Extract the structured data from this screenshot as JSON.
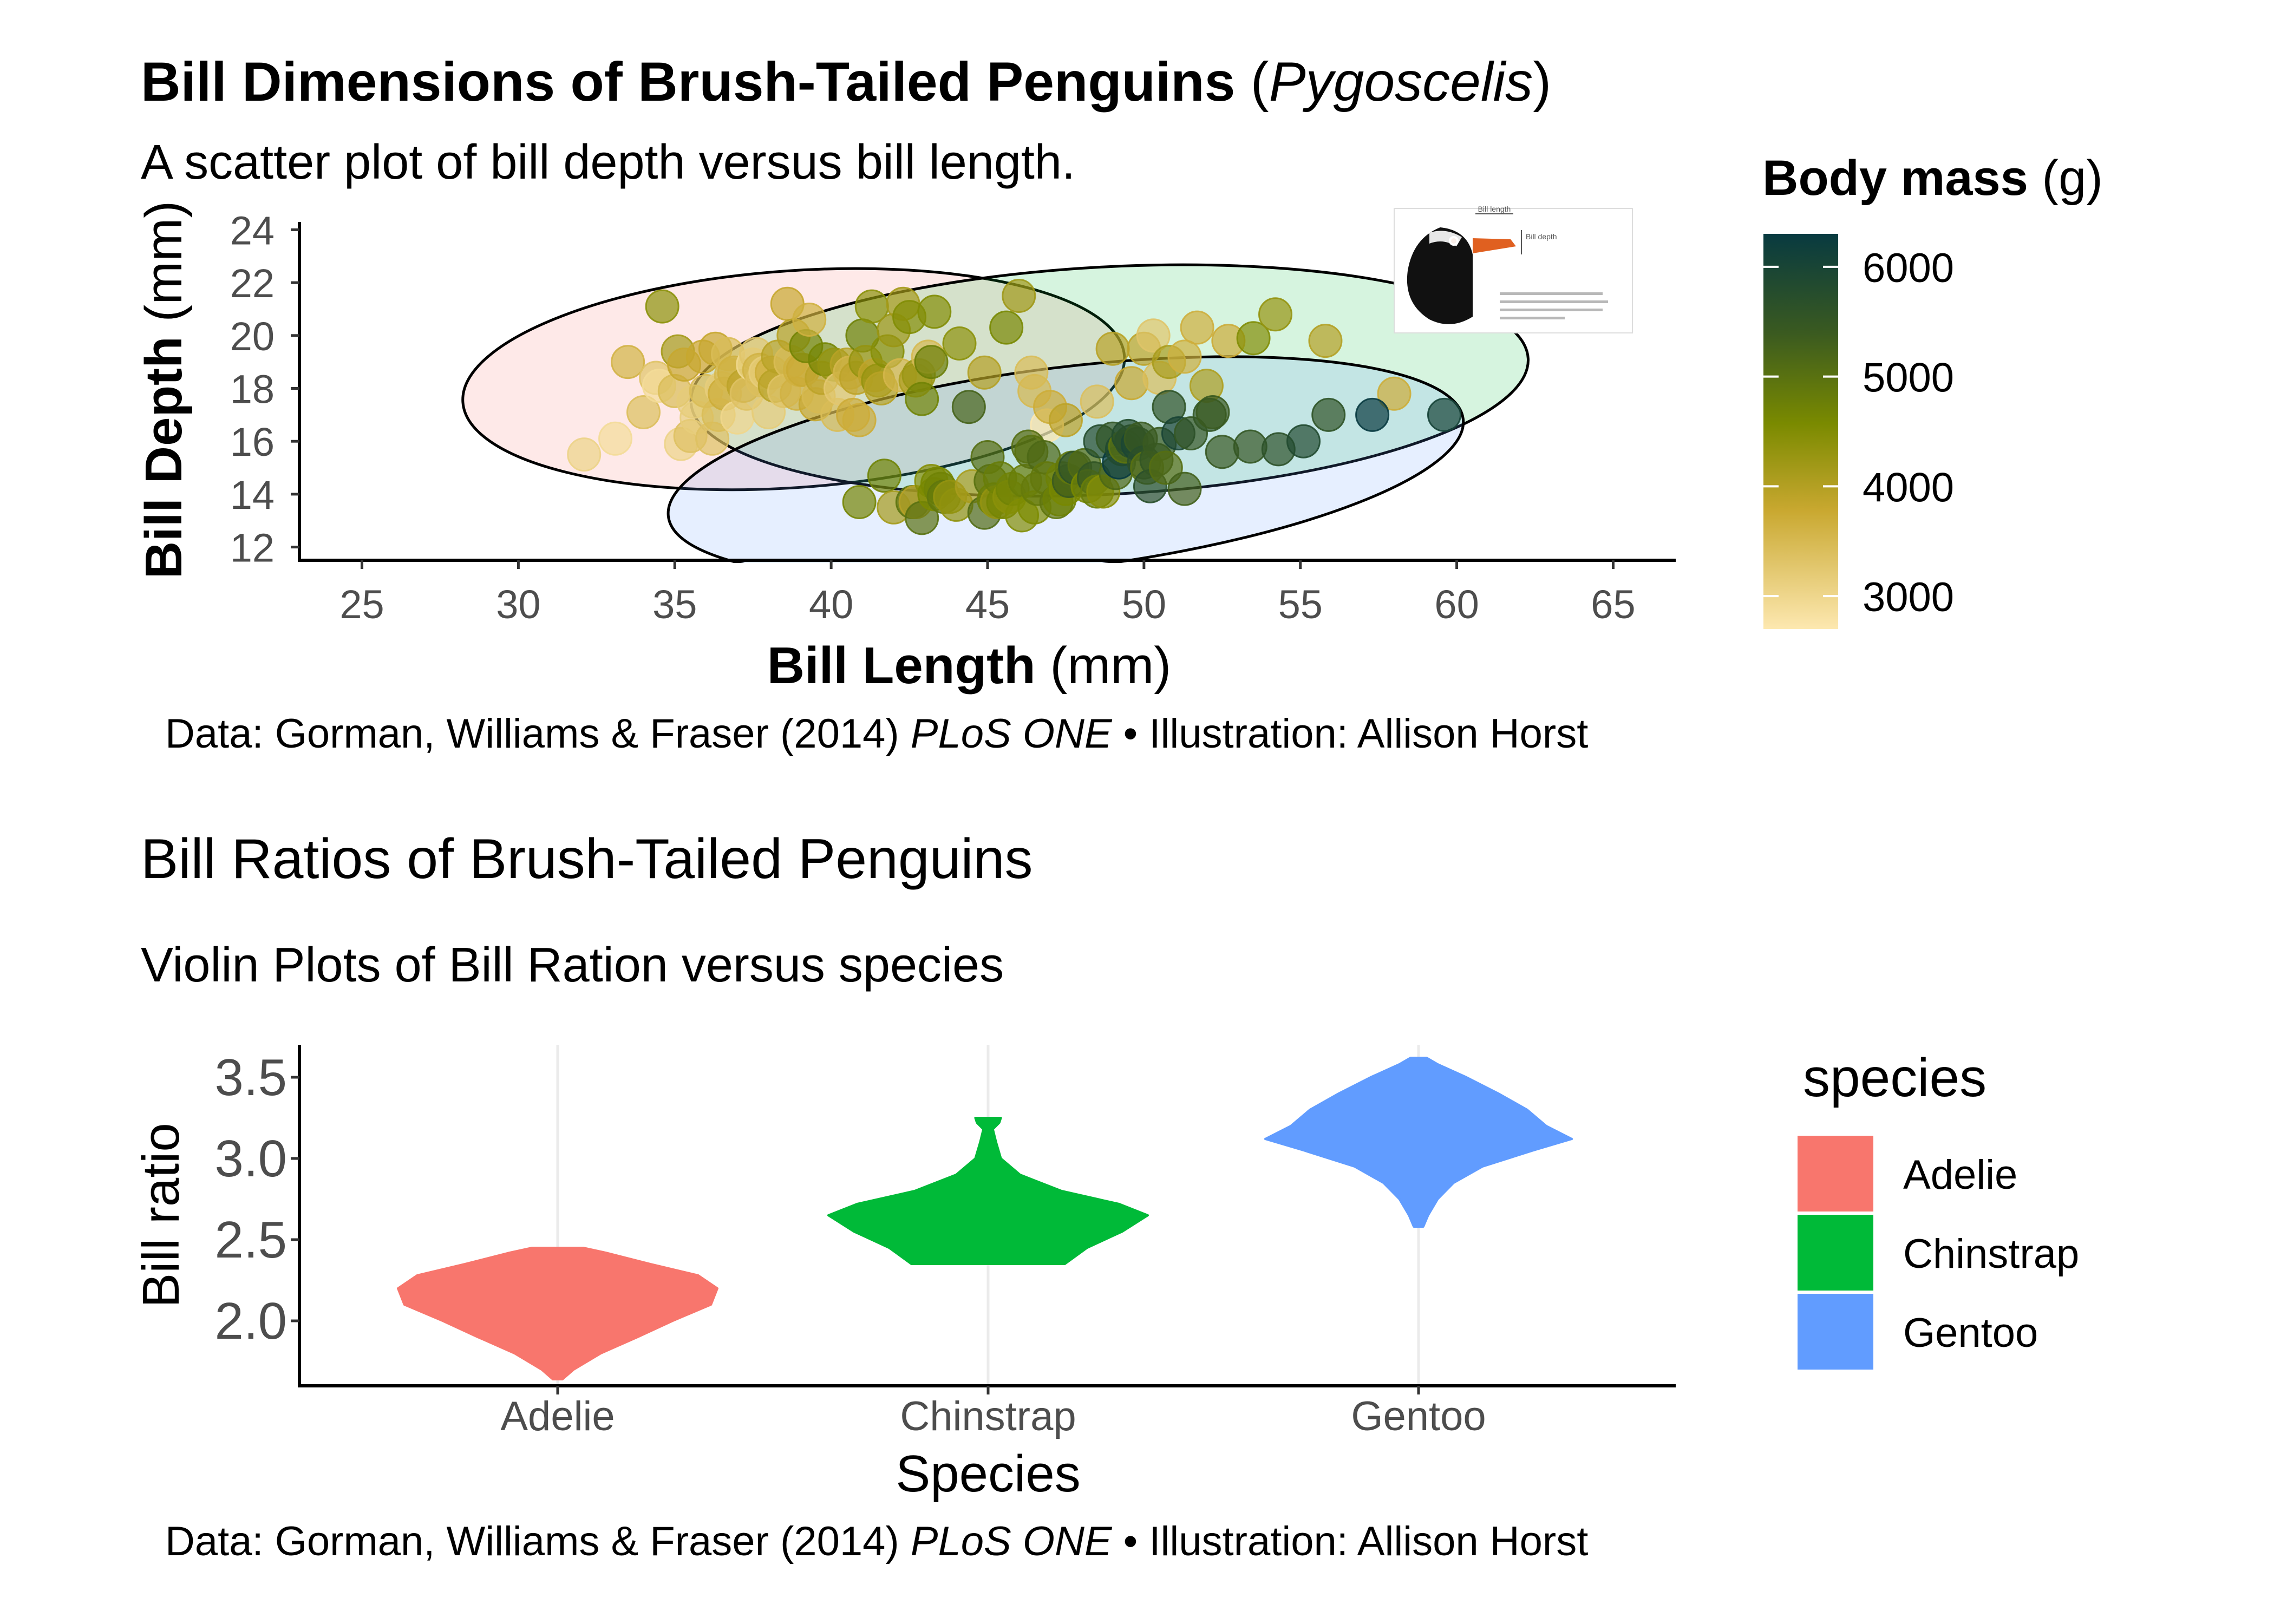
{
  "plot1": {
    "title_bold": "Bill Dimensions of Brush-Tailed Penguins",
    "title_open": " (",
    "title_italic": "Pygoscelis",
    "title_close": ")",
    "subtitle": "A scatter plot of bill depth versus bill length.",
    "caption_a": "Data: Gorman, Williams & Fraser (2014) ",
    "caption_italic": "PLoS ONE",
    "caption_b": " • Illustration: Allison Horst",
    "xlabel_bold": "Bill Length",
    "xlabel_unit": " (mm)",
    "ylabel_bold": "Bill Depth",
    "ylabel_unit": " (mm)",
    "legend_title_bold": "Body mass",
    "legend_title_unit": " (g)",
    "legend_ticks": [
      "3000",
      "4000",
      "5000",
      "6000"
    ],
    "illustration_labels": {
      "bill_length": "Bill length",
      "bill_depth": "Bill depth"
    },
    "colors": {
      "low": "#fde8b0",
      "mid1": "#c9a830",
      "mid2": "#7a8a00",
      "mid3": "#3a5a20",
      "high": "#083a40"
    }
  },
  "plot2": {
    "title": "Bill Ratios of Brush-Tailed Penguins",
    "subtitle": "Violin Plots of Bill Ration versus species",
    "caption_a": "Data: Gorman, Williams & Fraser (2014) ",
    "caption_italic": "PLoS ONE",
    "caption_b": " • Illustration: Allison Horst",
    "legend_title": "species",
    "colors": {
      "Adelie": "#F8766D",
      "Chinstrap": "#00BA38",
      "Gentoo": "#619CFF"
    }
  },
  "chart_data": [
    {
      "type": "scatter",
      "xlabel": "Bill Length (mm)",
      "ylabel": "Bill Depth (mm)",
      "xlim": [
        23,
        67
      ],
      "ylim": [
        11.5,
        24.5
      ],
      "xticks": [
        25,
        30,
        35,
        40,
        45,
        50,
        55,
        60,
        65
      ],
      "yticks": [
        12,
        14,
        16,
        18,
        20,
        22,
        24
      ],
      "color_scale": {
        "name": "Body mass (g)",
        "range": [
          2700,
          6300
        ]
      },
      "ellipses": [
        {
          "group": "Adelie",
          "fill": "#F8766D",
          "cx": 38.8,
          "cy": 18.35,
          "rx": 10.6,
          "ry": 4.1,
          "angle_deg": 4
        },
        {
          "group": "Chinstrap",
          "fill": "#00BA38",
          "cx": 48.9,
          "cy": 18.3,
          "rx": 13.4,
          "ry": 4.3,
          "angle_deg": 3
        },
        {
          "group": "Gentoo",
          "fill": "#619CFF",
          "cx": 47.5,
          "cy": 15.0,
          "rx": 12.8,
          "ry": 3.8,
          "angle_deg": 7
        }
      ],
      "points": [
        [
          32.1,
          15.5,
          3050
        ],
        [
          33.1,
          16.1,
          2900
        ],
        [
          33.5,
          19.0,
          3600
        ],
        [
          34.0,
          17.1,
          3400
        ],
        [
          34.4,
          18.4,
          3325
        ],
        [
          34.5,
          18.1,
          2900
        ],
        [
          34.6,
          21.1,
          4400
        ],
        [
          35.0,
          17.9,
          3450
        ],
        [
          35.1,
          19.4,
          4150
        ],
        [
          35.2,
          15.9,
          3050
        ],
        [
          35.3,
          18.9,
          3800
        ],
        [
          35.5,
          16.2,
          3350
        ],
        [
          35.6,
          17.5,
          3175
        ],
        [
          35.7,
          16.9,
          3150
        ],
        [
          35.9,
          19.2,
          3800
        ],
        [
          36.0,
          17.9,
          3450
        ],
        [
          36.2,
          16.1,
          3350
        ],
        [
          36.3,
          19.5,
          3800
        ],
        [
          36.4,
          17.0,
          3450
        ],
        [
          36.5,
          18.0,
          3150
        ],
        [
          36.6,
          17.8,
          3700
        ],
        [
          36.7,
          19.3,
          3450
        ],
        [
          36.8,
          18.5,
          3500
        ],
        [
          36.9,
          18.6,
          3650
        ],
        [
          37.0,
          16.9,
          3000
        ],
        [
          37.2,
          18.1,
          3900
        ],
        [
          37.3,
          17.8,
          3350
        ],
        [
          37.5,
          18.9,
          2975
        ],
        [
          37.6,
          19.3,
          3300
        ],
        [
          37.7,
          18.7,
          3600
        ],
        [
          37.8,
          18.3,
          3400
        ],
        [
          37.9,
          18.6,
          3150
        ],
        [
          38.0,
          17.1,
          3175
        ],
        [
          38.1,
          18.6,
          3700
        ],
        [
          38.2,
          18.1,
          3950
        ],
        [
          38.3,
          19.2,
          3950
        ],
        [
          38.5,
          17.9,
          3325
        ],
        [
          38.6,
          21.2,
          3800
        ],
        [
          38.7,
          19.0,
          3450
        ],
        [
          38.8,
          20.0,
          3950
        ],
        [
          38.9,
          17.8,
          3625
        ],
        [
          39.0,
          18.7,
          3650
        ],
        [
          39.1,
          18.7,
          3750
        ],
        [
          39.2,
          19.6,
          4675
        ],
        [
          39.3,
          20.6,
          3650
        ],
        [
          39.5,
          17.4,
          3800
        ],
        [
          39.6,
          17.7,
          3500
        ],
        [
          39.7,
          18.4,
          3900
        ],
        [
          39.8,
          19.1,
          4650
        ],
        [
          40.1,
          18.9,
          4300
        ],
        [
          40.2,
          17.0,
          3450
        ],
        [
          40.3,
          18.0,
          3250
        ],
        [
          40.5,
          18.9,
          3950
        ],
        [
          40.6,
          18.6,
          3550
        ],
        [
          40.7,
          17.0,
          3725
        ],
        [
          40.8,
          18.4,
          3900
        ],
        [
          40.9,
          16.8,
          3700
        ],
        [
          41.0,
          20.0,
          4725
        ],
        [
          41.1,
          19.0,
          4300
        ],
        [
          41.3,
          21.1,
          4400
        ],
        [
          41.4,
          18.5,
          3875
        ],
        [
          41.5,
          18.3,
          4300
        ],
        [
          41.6,
          18.0,
          3950
        ],
        [
          41.8,
          19.4,
          4450
        ],
        [
          42.0,
          20.2,
          4250
        ],
        [
          42.2,
          18.5,
          3550
        ],
        [
          42.3,
          21.2,
          4150
        ],
        [
          42.5,
          20.7,
          4500
        ],
        [
          42.7,
          18.3,
          4075
        ],
        [
          42.8,
          18.5,
          4250
        ],
        [
          42.9,
          17.6,
          4700
        ],
        [
          43.1,
          19.2,
          3500
        ],
        [
          43.2,
          19.0,
          4775
        ],
        [
          43.3,
          20.9,
          4500
        ],
        [
          44.1,
          19.7,
          4400
        ],
        [
          44.9,
          18.6,
          4000
        ],
        [
          45.6,
          20.3,
          4600
        ],
        [
          46.0,
          21.5,
          4200
        ],
        [
          46.4,
          18.6,
          3450
        ],
        [
          46.5,
          17.9,
          3500
        ],
        [
          46.9,
          16.6,
          2700
        ],
        [
          47.0,
          17.3,
          3700
        ],
        [
          47.5,
          16.8,
          3900
        ],
        [
          48.5,
          17.5,
          3400
        ],
        [
          49.0,
          19.5,
          3950
        ],
        [
          49.6,
          18.2,
          3775
        ],
        [
          50.0,
          19.5,
          3900
        ],
        [
          50.3,
          20.0,
          3300
        ],
        [
          50.5,
          18.4,
          3400
        ],
        [
          50.8,
          19.0,
          4100
        ],
        [
          51.3,
          19.2,
          3650
        ],
        [
          51.7,
          20.3,
          3675
        ],
        [
          52.0,
          18.1,
          4050
        ],
        [
          52.7,
          19.8,
          3725
        ],
        [
          53.5,
          19.9,
          4500
        ],
        [
          54.2,
          20.8,
          4300
        ],
        [
          55.8,
          19.8,
          4000
        ],
        [
          58.0,
          17.8,
          3700
        ],
        [
          40.9,
          13.7,
          4650
        ],
        [
          41.7,
          14.7,
          4700
        ],
        [
          42.0,
          13.5,
          4150
        ],
        [
          42.6,
          13.7,
          4950
        ],
        [
          42.7,
          13.7,
          3950
        ],
        [
          42.9,
          13.1,
          5000
        ],
        [
          43.2,
          14.5,
          4450
        ],
        [
          43.3,
          14.0,
          4575
        ],
        [
          43.4,
          14.4,
          4600
        ],
        [
          43.5,
          14.2,
          4700
        ],
        [
          43.6,
          13.9,
          4900
        ],
        [
          43.8,
          13.9,
          4300
        ],
        [
          44.0,
          13.6,
          4350
        ],
        [
          44.4,
          17.3,
          5250
        ],
        [
          44.5,
          14.3,
          4100
        ],
        [
          44.9,
          13.3,
          5100
        ],
        [
          45.0,
          15.4,
          5050
        ],
        [
          45.1,
          14.5,
          5000
        ],
        [
          45.2,
          13.8,
          4750
        ],
        [
          45.3,
          13.7,
          4300
        ],
        [
          45.4,
          14.6,
          4800
        ],
        [
          45.5,
          13.7,
          4650
        ],
        [
          45.7,
          13.9,
          4400
        ],
        [
          45.8,
          14.2,
          4700
        ],
        [
          46.1,
          13.2,
          4500
        ],
        [
          46.2,
          14.5,
          4800
        ],
        [
          46.3,
          15.8,
          5050
        ],
        [
          46.4,
          15.6,
          5000
        ],
        [
          46.5,
          13.5,
          4550
        ],
        [
          46.6,
          14.2,
          4850
        ],
        [
          46.8,
          15.4,
          5150
        ],
        [
          46.9,
          14.6,
          4875
        ],
        [
          47.2,
          13.7,
          4925
        ],
        [
          47.3,
          13.8,
          4725
        ],
        [
          47.4,
          14.6,
          4725
        ],
        [
          47.5,
          14.2,
          4600
        ],
        [
          47.6,
          14.5,
          5400
        ],
        [
          47.7,
          15.0,
          4875
        ],
        [
          47.8,
          15.0,
          5650
        ],
        [
          48.1,
          15.1,
          5100
        ],
        [
          48.2,
          14.3,
          4600
        ],
        [
          48.4,
          14.6,
          5550
        ],
        [
          48.5,
          14.1,
          4800
        ],
        [
          48.6,
          16.0,
          5800
        ],
        [
          48.7,
          14.1,
          4450
        ],
        [
          49.0,
          16.1,
          5550
        ],
        [
          49.1,
          14.8,
          5150
        ],
        [
          49.2,
          15.2,
          6300
        ],
        [
          49.3,
          15.7,
          5850
        ],
        [
          49.4,
          15.8,
          4925
        ],
        [
          49.5,
          16.2,
          5800
        ],
        [
          49.6,
          16.0,
          5700
        ],
        [
          49.8,
          15.9,
          5950
        ],
        [
          49.9,
          16.1,
          5400
        ],
        [
          50.0,
          15.2,
          5700
        ],
        [
          50.1,
          15.0,
          5000
        ],
        [
          50.2,
          14.3,
          5700
        ],
        [
          50.4,
          15.3,
          5550
        ],
        [
          50.5,
          15.9,
          5400
        ],
        [
          50.7,
          15.0,
          5050
        ],
        [
          50.8,
          17.3,
          5600
        ],
        [
          51.1,
          16.3,
          6000
        ],
        [
          51.3,
          14.2,
          5300
        ],
        [
          51.5,
          16.3,
          5500
        ],
        [
          52.1,
          17.0,
          5550
        ],
        [
          52.2,
          17.1,
          5400
        ],
        [
          52.5,
          15.6,
          5450
        ],
        [
          53.4,
          15.8,
          5500
        ],
        [
          54.3,
          15.7,
          5650
        ],
        [
          55.1,
          16.0,
          5850
        ],
        [
          55.9,
          17.0,
          5600
        ],
        [
          57.3,
          17.0,
          6300
        ],
        [
          59.6,
          17.0,
          6050
        ]
      ]
    },
    {
      "type": "violin",
      "categories": [
        "Adelie",
        "Chinstrap",
        "Gentoo"
      ],
      "xlabel": "Species",
      "ylabel": "Bill ratio",
      "ylim": [
        1.6,
        3.7
      ],
      "yticks": [
        2.0,
        2.5,
        3.0,
        3.5
      ],
      "series": [
        {
          "name": "Adelie",
          "min": 1.64,
          "max": 2.45,
          "profile": [
            [
              1.64,
              0.03
            ],
            [
              1.7,
              0.1
            ],
            [
              1.8,
              0.27
            ],
            [
              1.9,
              0.5
            ],
            [
              2.0,
              0.72
            ],
            [
              2.1,
              0.96
            ],
            [
              2.2,
              1.0
            ],
            [
              2.28,
              0.88
            ],
            [
              2.35,
              0.58
            ],
            [
              2.42,
              0.3
            ],
            [
              2.45,
              0.16
            ]
          ]
        },
        {
          "name": "Chinstrap",
          "min": 2.35,
          "max": 3.25,
          "profile": [
            [
              2.35,
              0.48
            ],
            [
              2.45,
              0.62
            ],
            [
              2.55,
              0.84
            ],
            [
              2.65,
              1.0
            ],
            [
              2.72,
              0.82
            ],
            [
              2.8,
              0.46
            ],
            [
              2.9,
              0.2
            ],
            [
              3.0,
              0.08
            ],
            [
              3.1,
              0.05
            ],
            [
              3.18,
              0.03
            ],
            [
              3.22,
              0.07
            ],
            [
              3.25,
              0.08
            ]
          ]
        },
        {
          "name": "Gentoo",
          "min": 2.58,
          "max": 3.62,
          "profile": [
            [
              2.58,
              0.03
            ],
            [
              2.65,
              0.06
            ],
            [
              2.75,
              0.12
            ],
            [
              2.85,
              0.22
            ],
            [
              2.95,
              0.4
            ],
            [
              3.05,
              0.72
            ],
            [
              3.12,
              0.96
            ],
            [
              3.2,
              0.8
            ],
            [
              3.3,
              0.68
            ],
            [
              3.4,
              0.5
            ],
            [
              3.5,
              0.3
            ],
            [
              3.58,
              0.12
            ],
            [
              3.62,
              0.05
            ]
          ]
        }
      ]
    }
  ]
}
